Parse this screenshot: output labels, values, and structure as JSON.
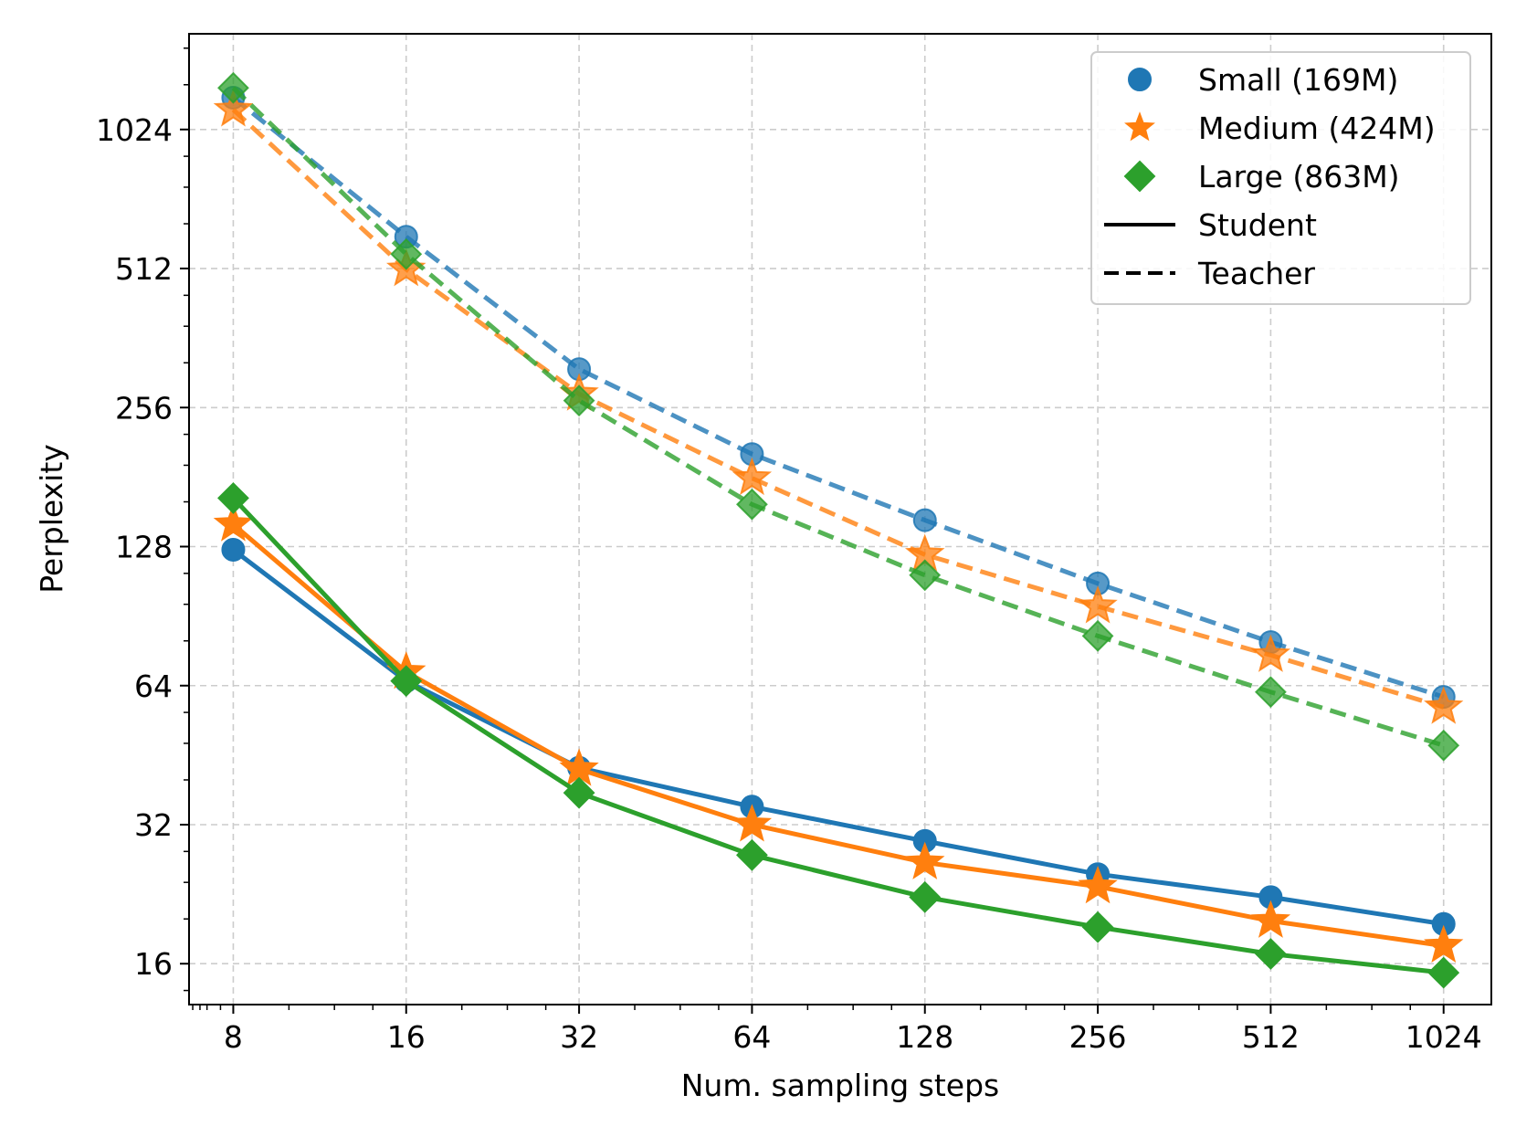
{
  "chart_data": {
    "type": "line",
    "xlabel": "Num. sampling steps",
    "ylabel": "Perplexity",
    "x_scale": "log2",
    "y_scale": "log2",
    "x": [
      8,
      16,
      32,
      64,
      128,
      256,
      512,
      1024
    ],
    "xticks": [
      "8",
      "16",
      "32",
      "64",
      "128",
      "256",
      "512",
      "1024"
    ],
    "yticks": [
      "16",
      "32",
      "64",
      "128",
      "256",
      "512",
      "1024"
    ],
    "xlim": [
      6.7,
      1240
    ],
    "ylim": [
      13.05,
      1650
    ],
    "grid": true,
    "legend_position": "top-right",
    "colors": {
      "small": "#1f77b4",
      "medium": "#ff7f0e",
      "large": "#2ca02c"
    },
    "series": [
      {
        "key": "small",
        "name": "Small (169M)",
        "marker": "circle",
        "variant": "Student",
        "values": [
          126,
          65.5,
          42.5,
          35,
          29.5,
          25,
          22.3,
          19.5
        ]
      },
      {
        "key": "medium",
        "name": "Medium (424M)",
        "marker": "star",
        "variant": "Student",
        "values": [
          143,
          68.5,
          42.2,
          32,
          26.5,
          23.5,
          19.8,
          17.5
        ]
      },
      {
        "key": "large",
        "name": "Large (863M)",
        "marker": "diamond",
        "variant": "Student",
        "values": [
          163,
          65.5,
          37.5,
          27.5,
          22.3,
          19.2,
          16.8,
          15.3
        ]
      },
      {
        "key": "small",
        "name": "Small (169M)",
        "marker": "circle",
        "variant": "Teacher",
        "values": [
          1200,
          600,
          310,
          203,
          146,
          106.5,
          79.5,
          60.5
        ]
      },
      {
        "key": "medium",
        "name": "Medium (424M)",
        "marker": "star",
        "variant": "Teacher",
        "values": [
          1130,
          510,
          274,
          180,
          123,
          95,
          74.5,
          57.5
        ]
      },
      {
        "key": "large",
        "name": "Large (863M)",
        "marker": "diamond",
        "variant": "Teacher",
        "values": [
          1260,
          550,
          265,
          158,
          111,
          82,
          62,
          47.5
        ]
      }
    ],
    "legend": {
      "items": [
        {
          "key": "small",
          "marker": "circle",
          "label": "Small (169M)"
        },
        {
          "key": "medium",
          "marker": "star",
          "label": "Medium (424M)"
        },
        {
          "key": "large",
          "marker": "diamond",
          "label": "Large (863M)"
        },
        {
          "key": "student",
          "line": "solid",
          "label": "Student"
        },
        {
          "key": "teacher",
          "line": "dashed",
          "label": "Teacher"
        }
      ]
    }
  }
}
